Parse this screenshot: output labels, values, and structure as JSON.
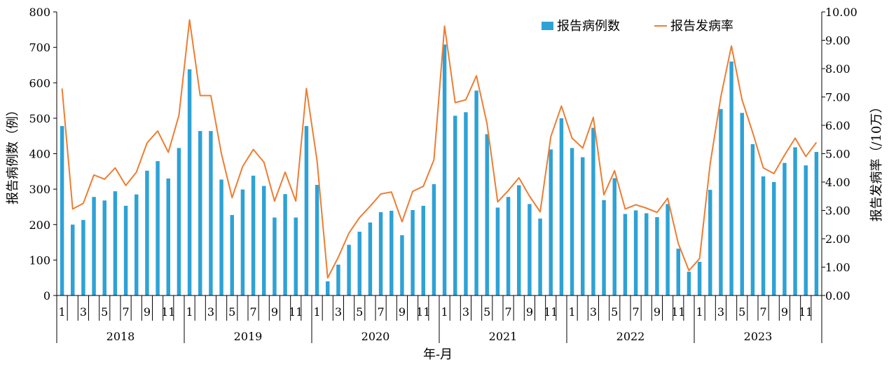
{
  "chart_data": {
    "type": "bar",
    "xlabel": "年-月",
    "ylabel_left": "报告病例数（例）",
    "ylabel_right": "报告发病率（/10万）",
    "ylim_left": [
      0,
      800
    ],
    "ylim_right": [
      0,
      10
    ],
    "yticks_left": [
      "0",
      "100",
      "200",
      "300",
      "400",
      "500",
      "600",
      "700",
      "800"
    ],
    "yticks_right": [
      "0.00",
      "1.00",
      "2.00",
      "3.00",
      "4.00",
      "5.00",
      "6.00",
      "7.00",
      "8.00",
      "9.00",
      "10.00"
    ],
    "years": [
      "2018",
      "2019",
      "2020",
      "2021",
      "2022",
      "2023"
    ],
    "month_ticks": [
      "1",
      "3",
      "5",
      "7",
      "9",
      "11"
    ],
    "legend_position": "top-right",
    "colors": {
      "bars": "#2ea2d6",
      "line": "#ed7d31",
      "axis": "#000000"
    },
    "series": [
      {
        "name": "报告病例数",
        "kind": "bar",
        "axis": "left",
        "values": [
          478,
          200,
          213,
          278,
          268,
          294,
          253,
          285,
          352,
          379,
          330,
          416,
          638,
          464,
          464,
          327,
          227,
          299,
          338,
          309,
          220,
          286,
          220,
          478,
          312,
          40,
          87,
          143,
          180,
          206,
          235,
          239,
          170,
          241,
          253,
          314,
          708,
          507,
          517,
          578,
          455,
          248,
          278,
          311,
          258,
          217,
          412,
          500,
          416,
          390,
          473,
          269,
          331,
          230,
          240,
          232,
          221,
          258,
          132,
          67,
          95,
          298,
          526,
          660,
          515,
          427,
          336,
          320,
          374,
          418,
          367,
          405
        ]
      },
      {
        "name": "报告发病率",
        "kind": "line",
        "axis": "right",
        "values": [
          7.3,
          3.05,
          3.25,
          4.25,
          4.1,
          4.5,
          3.88,
          4.35,
          5.38,
          5.8,
          5.05,
          6.35,
          9.72,
          7.05,
          7.05,
          5.0,
          3.45,
          4.55,
          5.15,
          4.7,
          3.33,
          4.35,
          3.33,
          7.3,
          4.75,
          0.62,
          1.35,
          2.2,
          2.75,
          3.15,
          3.58,
          3.65,
          2.6,
          3.67,
          3.85,
          4.78,
          9.5,
          6.8,
          6.9,
          7.75,
          6.05,
          3.3,
          3.7,
          4.15,
          3.5,
          2.95,
          5.6,
          6.68,
          5.55,
          5.2,
          6.28,
          3.55,
          4.4,
          3.05,
          3.2,
          3.08,
          2.93,
          3.43,
          1.83,
          0.88,
          1.3,
          4.65,
          7.0,
          8.8,
          6.9,
          5.75,
          4.5,
          4.3,
          4.95,
          5.55,
          4.9,
          5.4
        ]
      }
    ]
  }
}
